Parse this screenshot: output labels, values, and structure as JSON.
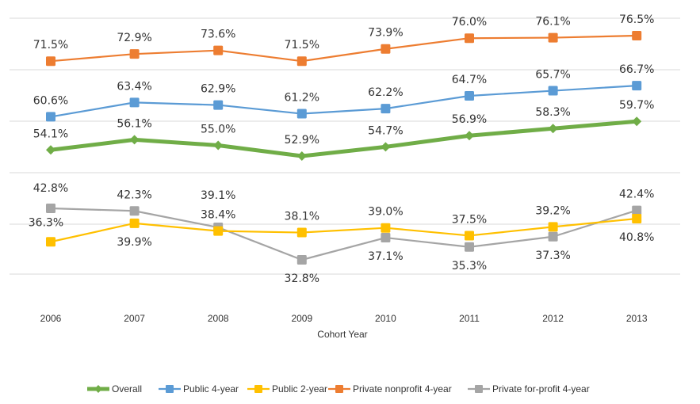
{
  "chart_data": {
    "type": "line",
    "xlabel": "Cohort Year",
    "ylabel": "",
    "grid": true,
    "legend_position": "bottom",
    "categories": [
      "2006",
      "2007",
      "2008",
      "2009",
      "2010",
      "2011",
      "2012",
      "2013"
    ],
    "series": [
      {
        "name": "Overall",
        "color": "#70AD47",
        "marker": "diamond",
        "values": [
          54.1,
          56.1,
          55.0,
          52.9,
          54.7,
          56.9,
          58.3,
          59.7
        ],
        "labels": [
          "54.1%",
          "56.1%",
          "55.0%",
          "52.9%",
          "54.7%",
          "56.9%",
          "58.3%",
          "59.7%"
        ]
      },
      {
        "name": "Public 4-year",
        "color": "#5B9BD5",
        "marker": "square",
        "values": [
          60.6,
          63.4,
          62.9,
          61.2,
          62.2,
          64.7,
          65.7,
          66.7
        ],
        "labels": [
          "60.6%",
          "63.4%",
          "62.9%",
          "61.2%",
          "62.2%",
          "64.7%",
          "65.7%",
          "66.7%"
        ]
      },
      {
        "name": "Public 2-year",
        "color": "#FFC000",
        "marker": "square",
        "values": [
          36.3,
          39.9,
          38.4,
          38.1,
          39.0,
          37.5,
          39.2,
          40.8
        ],
        "labels": [
          "36.3%",
          "39.9%",
          "38.4%",
          "38.1%",
          "39.0%",
          "37.5%",
          "39.2%",
          "40.8%"
        ]
      },
      {
        "name": "Private nonprofit 4-year",
        "color": "#ED7D31",
        "marker": "square",
        "values": [
          71.5,
          72.9,
          73.6,
          71.5,
          73.9,
          76.0,
          76.1,
          76.5
        ],
        "labels": [
          "71.5%",
          "72.9%",
          "73.6%",
          "71.5%",
          "73.9%",
          "76.0%",
          "76.1%",
          "76.5%"
        ]
      },
      {
        "name": "Private for-profit 4-year",
        "color": "#A5A5A5",
        "marker": "square",
        "values": [
          42.8,
          42.3,
          39.1,
          32.8,
          37.1,
          35.3,
          37.3,
          42.4
        ],
        "labels": [
          "42.8%",
          "42.3%",
          "39.1%",
          "32.8%",
          "37.1%",
          "35.3%",
          "37.3%",
          "42.4%"
        ]
      }
    ],
    "gridline_color": "#D9D9D9"
  }
}
